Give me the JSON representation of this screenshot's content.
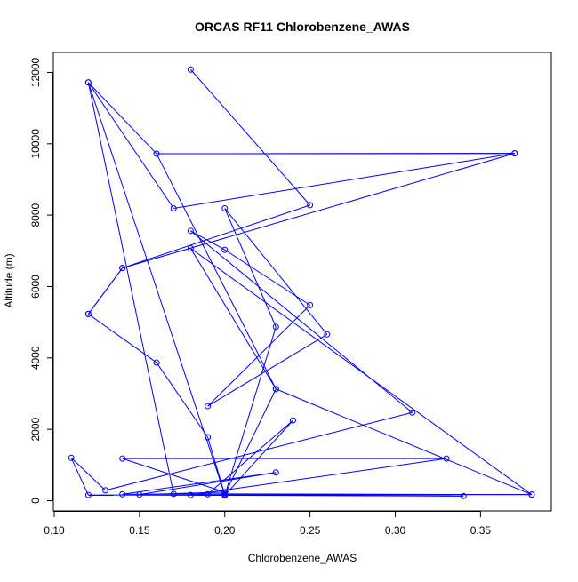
{
  "chart_data": {
    "type": "line",
    "title": "ORCAS RF11 Chlorobenzene_AWAS",
    "xlabel": "Chlorobenzene_AWAS",
    "ylabel": "Altitude (m)",
    "xlim": [
      0.1,
      0.38
    ],
    "ylim": [
      0,
      12000
    ],
    "x_ticks": [
      0.1,
      0.15,
      0.2,
      0.25,
      0.3,
      0.35
    ],
    "x_tick_labels": [
      "0.10",
      "0.15",
      "0.20",
      "0.25",
      "0.30",
      "0.35"
    ],
    "y_ticks": [
      0,
      2000,
      4000,
      6000,
      8000,
      10000,
      12000
    ],
    "y_tick_labels": [
      "0",
      "2000",
      "4000",
      "6000",
      "8000",
      "10000",
      "12000"
    ],
    "grid": false,
    "legend": "none",
    "series": [
      {
        "color": "#0000ff",
        "marker": "open-circle",
        "points": [
          [
            0.18,
            12080
          ],
          [
            0.25,
            8280
          ],
          [
            0.14,
            6520
          ],
          [
            0.12,
            5230
          ],
          [
            0.16,
            3870
          ],
          [
            0.19,
            1780
          ],
          [
            0.2,
            170
          ],
          [
            0.34,
            130
          ],
          [
            0.12,
            160
          ],
          [
            0.11,
            1200
          ],
          [
            0.13,
            290
          ],
          [
            0.31,
            2470
          ],
          [
            0.18,
            7560
          ],
          [
            0.2,
            7030
          ],
          [
            0.25,
            5480
          ],
          [
            0.19,
            2650
          ],
          [
            0.26,
            4660
          ],
          [
            0.2,
            8190
          ],
          [
            0.23,
            4870
          ],
          [
            0.2,
            150
          ],
          [
            0.24,
            2250
          ],
          [
            0.19,
            180
          ],
          [
            0.14,
            180
          ],
          [
            0.23,
            790
          ],
          [
            0.15,
            170
          ],
          [
            0.2,
            240
          ],
          [
            0.14,
            1180
          ],
          [
            0.33,
            1180
          ],
          [
            0.18,
            160
          ],
          [
            0.38,
            170
          ],
          [
            0.18,
            7070
          ],
          [
            0.23,
            3130
          ],
          [
            0.16,
            9720
          ],
          [
            0.37,
            9730
          ],
          [
            0.17,
            8190
          ],
          [
            0.12,
            11720
          ],
          [
            0.2,
            170
          ],
          [
            0.23,
            3130
          ],
          [
            0.38,
            170
          ],
          [
            0.2,
            190
          ],
          [
            0.17,
            190
          ],
          [
            0.12,
            11720
          ],
          [
            0.16,
            9720
          ],
          [
            0.37,
            9730
          ],
          [
            0.14,
            6520
          ],
          [
            0.12,
            5230
          ]
        ]
      }
    ]
  }
}
